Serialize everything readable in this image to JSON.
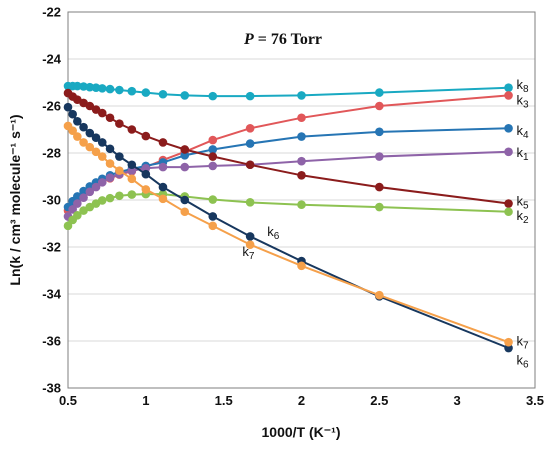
{
  "chart_data": {
    "type": "line",
    "title": "",
    "condition_label": {
      "var": "P",
      "text": " = 76 Torr"
    },
    "xlabel": "1000/T (K⁻¹)",
    "ylabel": "Ln(k / cm³ molecule⁻¹ s⁻¹)",
    "xlim": [
      0.5,
      3.5
    ],
    "ylim": [
      -38,
      -22
    ],
    "xticks": [
      "0.5",
      "1",
      "1.5",
      "2",
      "2.5",
      "3",
      "3.5"
    ],
    "yticks": [
      "-22",
      "-24",
      "-26",
      "-28",
      "-30",
      "-32",
      "-34",
      "-36",
      "-38"
    ],
    "grid": true,
    "series": [
      {
        "name": "k8",
        "label_base": "k",
        "label_sub": "8",
        "color": "#19A9C2",
        "x": [
          0.5,
          0.53,
          0.56,
          0.6,
          0.64,
          0.68,
          0.72,
          0.77,
          0.83,
          0.91,
          1.0,
          1.11,
          1.25,
          1.43,
          1.67,
          2.0,
          2.5,
          3.33
        ],
        "y": [
          -25.15,
          -25.15,
          -25.15,
          -25.17,
          -25.2,
          -25.22,
          -25.25,
          -25.28,
          -25.32,
          -25.37,
          -25.43,
          -25.5,
          -25.55,
          -25.58,
          -25.58,
          -25.55,
          -25.43,
          -25.22
        ]
      },
      {
        "name": "k3",
        "label_base": "k",
        "label_sub": "3",
        "color": "#E15759",
        "x": [
          0.5,
          0.53,
          0.56,
          0.6,
          0.64,
          0.68,
          0.72,
          0.77,
          0.83,
          0.91,
          1.0,
          1.11,
          1.25,
          1.43,
          1.67,
          2.0,
          2.5,
          3.33
        ],
        "y": [
          -30.45,
          -30.2,
          -29.95,
          -29.75,
          -29.55,
          -29.38,
          -29.22,
          -29.08,
          -28.92,
          -28.78,
          -28.6,
          -28.3,
          -27.95,
          -27.45,
          -26.95,
          -26.5,
          -26.0,
          -25.55
        ]
      },
      {
        "name": "k4",
        "label_base": "k",
        "label_sub": "4",
        "color": "#2675B4",
        "x": [
          0.5,
          0.53,
          0.56,
          0.6,
          0.64,
          0.68,
          0.72,
          0.77,
          0.83,
          0.91,
          1.0,
          1.11,
          1.25,
          1.43,
          1.67,
          2.0,
          2.5,
          3.33
        ],
        "y": [
          -30.3,
          -30.05,
          -29.85,
          -29.62,
          -29.42,
          -29.25,
          -29.1,
          -28.95,
          -28.8,
          -28.68,
          -28.55,
          -28.4,
          -28.1,
          -27.85,
          -27.6,
          -27.3,
          -27.1,
          -26.95
        ]
      },
      {
        "name": "k1",
        "label_base": "k",
        "label_sub": "1",
        "color": "#8E63A8",
        "x": [
          0.5,
          0.53,
          0.56,
          0.6,
          0.64,
          0.68,
          0.72,
          0.77,
          0.83,
          0.91,
          1.0,
          1.11,
          1.25,
          1.43,
          1.67,
          2.0,
          2.5,
          3.33
        ],
        "y": [
          -30.7,
          -30.4,
          -30.15,
          -29.9,
          -29.65,
          -29.45,
          -29.25,
          -29.05,
          -28.9,
          -28.75,
          -28.65,
          -28.6,
          -28.6,
          -28.55,
          -28.5,
          -28.35,
          -28.15,
          -27.95
        ]
      },
      {
        "name": "k5",
        "label_base": "k",
        "label_sub": "5",
        "color": "#8B1C1C",
        "x": [
          0.5,
          0.53,
          0.56,
          0.6,
          0.64,
          0.68,
          0.72,
          0.77,
          0.83,
          0.91,
          1.0,
          1.11,
          1.25,
          1.43,
          1.67,
          2.0,
          2.5,
          3.33
        ],
        "y": [
          -25.45,
          -25.6,
          -25.73,
          -25.87,
          -26.0,
          -26.15,
          -26.3,
          -26.5,
          -26.75,
          -27.0,
          -27.28,
          -27.55,
          -27.85,
          -28.15,
          -28.5,
          -28.95,
          -29.45,
          -30.15
        ]
      },
      {
        "name": "k2",
        "label_base": "k",
        "label_sub": "2",
        "color": "#8DC251",
        "x": [
          0.5,
          0.53,
          0.56,
          0.6,
          0.64,
          0.68,
          0.72,
          0.77,
          0.83,
          0.91,
          1.0,
          1.11,
          1.25,
          1.43,
          1.67,
          2.0,
          2.5,
          3.33
        ],
        "y": [
          -31.1,
          -30.85,
          -30.65,
          -30.45,
          -30.3,
          -30.15,
          -30.02,
          -29.92,
          -29.82,
          -29.77,
          -29.75,
          -29.75,
          -29.85,
          -29.98,
          -30.1,
          -30.2,
          -30.3,
          -30.5
        ]
      },
      {
        "name": "k6",
        "label_base": "k",
        "label_sub": "6",
        "color": "#17375E",
        "x": [
          0.5,
          0.53,
          0.56,
          0.6,
          0.64,
          0.68,
          0.72,
          0.77,
          0.83,
          0.91,
          1.0,
          1.11,
          1.25,
          1.43,
          1.67,
          2.0,
          2.5,
          3.33
        ],
        "y": [
          -26.05,
          -26.35,
          -26.65,
          -26.9,
          -27.15,
          -27.35,
          -27.55,
          -27.82,
          -28.15,
          -28.5,
          -28.9,
          -29.45,
          -30.0,
          -30.7,
          -31.55,
          -32.6,
          -34.1,
          -36.3
        ]
      },
      {
        "name": "k7",
        "label_base": "k",
        "label_sub": "7",
        "color": "#F5A04A",
        "x": [
          0.5,
          0.53,
          0.56,
          0.6,
          0.64,
          0.68,
          0.72,
          0.77,
          0.83,
          0.91,
          1.0,
          1.11,
          1.25,
          1.43,
          1.67,
          2.0,
          2.5,
          3.33
        ],
        "y": [
          -26.85,
          -27.05,
          -27.3,
          -27.55,
          -27.75,
          -27.95,
          -28.15,
          -28.45,
          -28.75,
          -29.1,
          -29.55,
          -29.95,
          -30.5,
          -31.1,
          -31.9,
          -32.8,
          -34.05,
          -36.05
        ]
      }
    ],
    "end_labels": [
      {
        "series": "k8",
        "y": -25.08
      },
      {
        "series": "k3",
        "y": -25.75
      },
      {
        "series": "k4",
        "y": -27.05
      },
      {
        "series": "k1",
        "y": -27.98
      },
      {
        "series": "k5",
        "y": -30.05
      },
      {
        "series": "k2",
        "y": -30.65
      },
      {
        "series": "k7",
        "y": -36.0
      },
      {
        "series": "k6",
        "y": -36.8
      }
    ],
    "inline_labels": [
      {
        "series": "k6",
        "x": 1.78,
        "y": -31.35
      },
      {
        "series": "k7",
        "x": 1.62,
        "y": -32.2
      }
    ]
  }
}
